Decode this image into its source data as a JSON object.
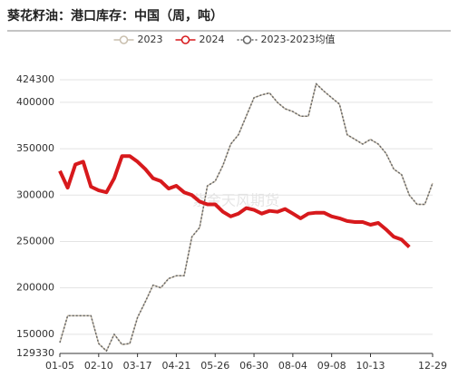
{
  "chart_data": {
    "type": "line",
    "title": "葵花籽油：港口库存：中国（周，吨）",
    "watermark": "紫金天风期货",
    "categories": [
      "01-05",
      null,
      null,
      null,
      null,
      "02-10",
      null,
      null,
      null,
      null,
      "03-17",
      null,
      null,
      null,
      null,
      "04-21",
      null,
      null,
      null,
      null,
      "05-26",
      null,
      null,
      null,
      null,
      "06-30",
      null,
      null,
      null,
      null,
      "08-04",
      null,
      null,
      null,
      null,
      "09-08",
      null,
      null,
      null,
      null,
      "10-13",
      null,
      null,
      null,
      null,
      null,
      null,
      null,
      "12-29"
    ],
    "series": [
      {
        "name": "2023",
        "color": "#c9bfae",
        "dash": false,
        "width": 1.5,
        "values": [
          141000,
          170000,
          170000,
          170000,
          170000,
          140000,
          132000,
          150000,
          139000,
          140000,
          168000,
          185000,
          203000,
          200000,
          210000,
          213000,
          213000,
          255000,
          265000,
          310000,
          315000,
          332000,
          355000,
          365000,
          385000,
          405000,
          408000,
          410000,
          400000,
          393000,
          390000,
          385000,
          385000,
          420000,
          412000,
          405000,
          398000,
          365000,
          360000,
          355000,
          360000,
          355000,
          345000,
          328000,
          322000,
          300000,
          290000,
          290000,
          313000
        ]
      },
      {
        "name": "2024",
        "color": "#d7191c",
        "dash": false,
        "width": 4,
        "values": [
          326000,
          308000,
          333000,
          336000,
          309000,
          305000,
          303000,
          318000,
          342000,
          342000,
          336000,
          328000,
          318000,
          315000,
          307000,
          310000,
          303000,
          300000,
          293000,
          290000,
          290000,
          282000,
          277000,
          280000,
          286000,
          284000,
          280000,
          283000,
          282000,
          285000,
          280000,
          275000,
          280000,
          281000,
          281000,
          277000,
          275000,
          272000,
          271000,
          271000,
          268000,
          270000,
          263000,
          255000,
          252000,
          244000,
          null,
          null,
          null
        ]
      },
      {
        "name": "2023-2023均值",
        "color": "#666666",
        "dash": true,
        "width": 1.5,
        "values": [
          141000,
          170000,
          170000,
          170000,
          170000,
          140000,
          132000,
          150000,
          139000,
          140000,
          168000,
          185000,
          203000,
          200000,
          210000,
          213000,
          213000,
          255000,
          265000,
          310000,
          315000,
          332000,
          355000,
          365000,
          385000,
          405000,
          408000,
          410000,
          400000,
          393000,
          390000,
          385000,
          385000,
          420000,
          412000,
          405000,
          398000,
          365000,
          360000,
          355000,
          360000,
          355000,
          345000,
          328000,
          322000,
          300000,
          290000,
          290000,
          313000
        ]
      }
    ],
    "ylim": [
      129330,
      424300
    ],
    "yticks": [
      129330,
      150000,
      200000,
      250000,
      300000,
      350000,
      400000,
      424300
    ],
    "grid": true
  }
}
